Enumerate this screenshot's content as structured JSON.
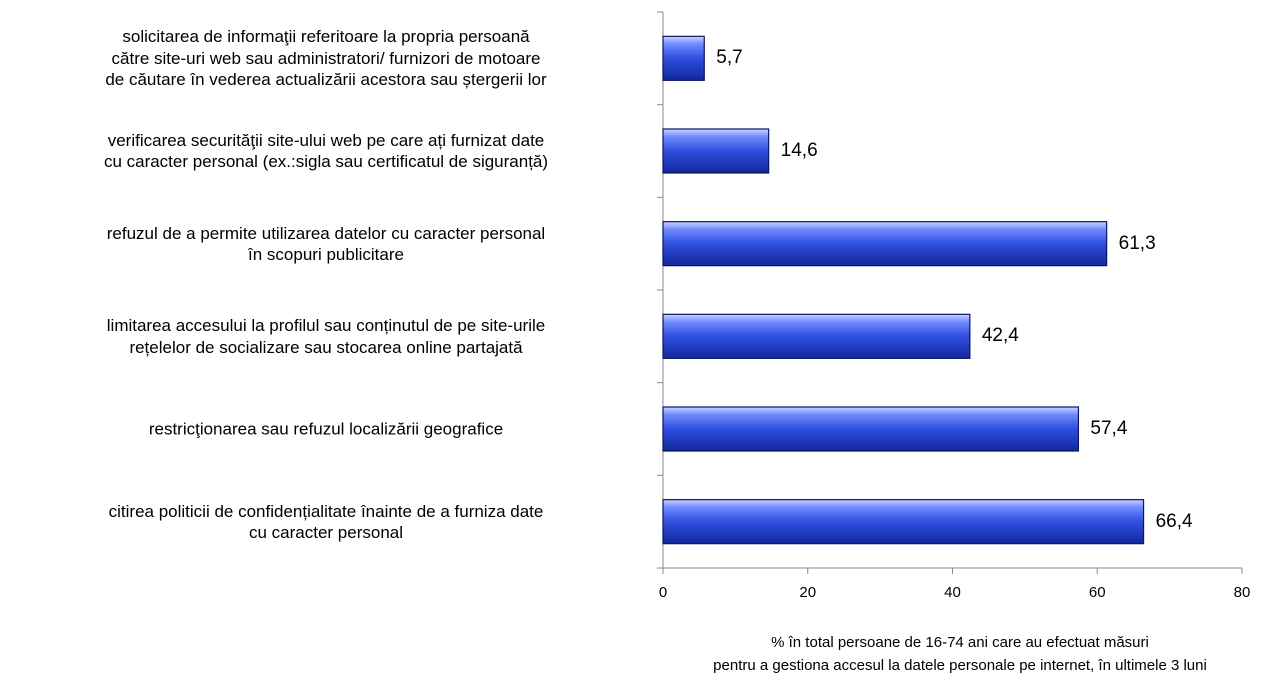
{
  "chart_data": {
    "type": "barh",
    "categories": [
      "solicitarea de informaţii referitoare la propria persoană\ncătre site-uri web sau administratori/ furnizori de motoare\nde căutare în vederea actualizării acestora sau ștergerii lor",
      "verificarea securităţii site-ului web pe care ați furnizat date\ncu caracter personal (ex.:sigla sau certificatul de siguranță)",
      "refuzul de a permite utilizarea datelor cu caracter personal\nîn scopuri publicitare",
      "limitarea accesului la profilul sau conținutul de pe site-urile\nrețelelor de socializare sau stocarea online partajată",
      "restricţionarea sau refuzul localizării geografice",
      "citirea politicii de confidențialitate înainte de a furniza date\ncu caracter personal"
    ],
    "values": [
      5.7,
      14.6,
      61.3,
      42.4,
      57.4,
      66.4
    ],
    "value_labels": [
      "5,7",
      "14,6",
      "61,3",
      "42,4",
      "57,4",
      "66,4"
    ],
    "color": "#2f4fe0",
    "xlim": [
      0,
      80
    ],
    "xticks": [
      0,
      20,
      40,
      60,
      80
    ],
    "x_label": "% în total persoane de 16-74 ani care au efectuat măsuri\npentru a gestiona accesul la datele personale pe internet, în ultimele 3 luni"
  }
}
